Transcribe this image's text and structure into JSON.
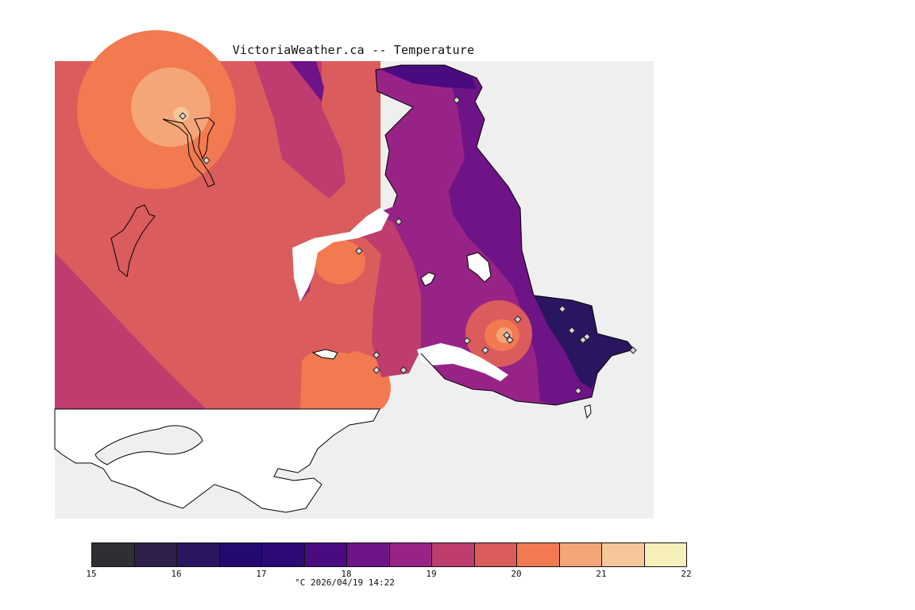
{
  "title": "VictoriaWeather.ca -- Temperature",
  "legend": {
    "ticks": [
      "15",
      "16",
      "17",
      "18",
      "19",
      "20",
      "21",
      "22"
    ],
    "caption": "°C  2026/04/19 14:22",
    "colors": [
      "#2f2f33",
      "#2d1f4a",
      "#2a1560",
      "#240a70",
      "#2b0a78",
      "#4a0a80",
      "#6e1487",
      "#982387",
      "#be3c6e",
      "#db5c5c",
      "#f17a50",
      "#f5a679",
      "#f5c79a",
      "#f7efb9"
    ]
  },
  "map": {
    "no_data_color": "#efefef",
    "water_color": "#ffffff",
    "coastline_color": "#000000",
    "station_marker": "diamond"
  }
}
